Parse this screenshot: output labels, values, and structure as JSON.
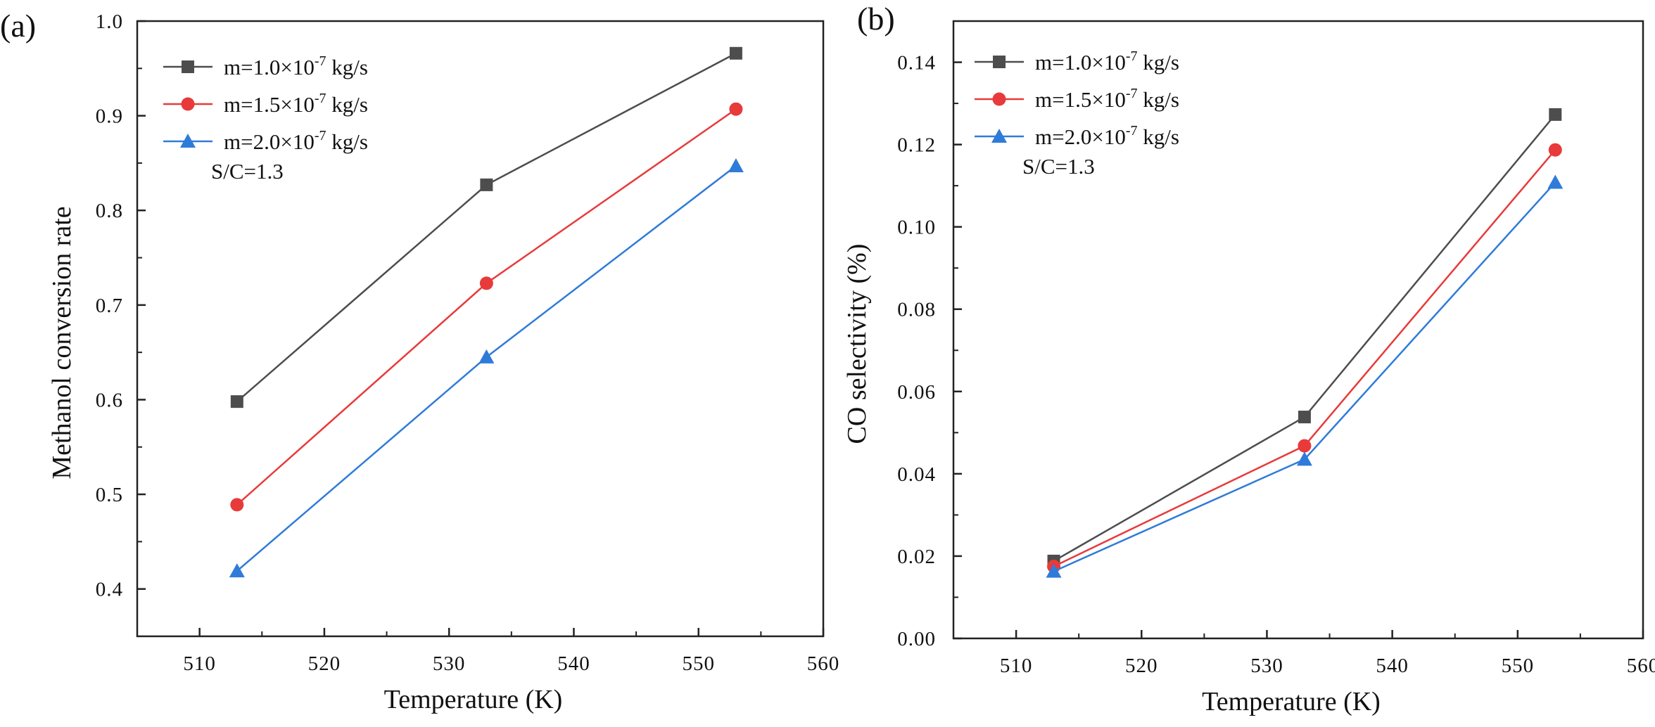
{
  "figure": {
    "background": "#ffffff",
    "axis_color": "#222222"
  },
  "chart_data": [
    {
      "type": "line",
      "panel_label": "(a)",
      "xlabel": "Temperature (K)",
      "ylabel": "Methanol conversion rate",
      "xlim": [
        505,
        560
      ],
      "ylim": [
        0.35,
        1.0
      ],
      "xticks": [
        510,
        520,
        530,
        540,
        550,
        560
      ],
      "xtick_labels": [
        "510",
        "520",
        "530",
        "540",
        "550",
        "560"
      ],
      "yticks": [
        0.4,
        0.5,
        0.6,
        0.7,
        0.8,
        0.9,
        1.0
      ],
      "ytick_labels": [
        "0.4",
        "0.5",
        "0.6",
        "0.7",
        "0.8",
        "0.9",
        "1.0"
      ],
      "grid": false,
      "legend_position": "top-left",
      "annotation": "S/C=1.3",
      "x": [
        513,
        533,
        553
      ],
      "series": [
        {
          "name": "m=1.0×10-7 kg/s",
          "name_base": "m=1.0×10",
          "name_exp": "-7",
          "name_unit": " kg/s",
          "color": "#4d4d4d",
          "marker": "square",
          "values": [
            0.598,
            0.827,
            0.966
          ]
        },
        {
          "name": "m=1.5×10-7 kg/s",
          "name_base": "m=1.5×10",
          "name_exp": "-7",
          "name_unit": " kg/s",
          "color": "#e83a3a",
          "marker": "circle",
          "values": [
            0.489,
            0.723,
            0.907
          ]
        },
        {
          "name": "m=2.0×10-7 kg/s",
          "name_base": "m=2.0×10",
          "name_exp": "-7",
          "name_unit": " kg/s",
          "color": "#2f7bd9",
          "marker": "triangle",
          "values": [
            0.419,
            0.645,
            0.847
          ]
        }
      ]
    },
    {
      "type": "line",
      "panel_label": "(b)",
      "xlabel": "Temperature (K)",
      "ylabel": "CO selectivity (%)",
      "xlim": [
        505,
        560
      ],
      "ylim": [
        0.0,
        0.15
      ],
      "xticks": [
        510,
        520,
        530,
        540,
        550,
        560
      ],
      "xtick_labels": [
        "510",
        "520",
        "530",
        "540",
        "550",
        "560"
      ],
      "yticks": [
        0.0,
        0.02,
        0.04,
        0.06,
        0.08,
        0.1,
        0.12,
        0.14
      ],
      "ytick_labels": [
        "0.00",
        "0.02",
        "0.04",
        "0.06",
        "0.08",
        "0.10",
        "0.12",
        "0.14"
      ],
      "grid": false,
      "legend_position": "top-left",
      "annotation": "S/C=1.3",
      "x": [
        513,
        533,
        553
      ],
      "series": [
        {
          "name": "m=1.0×10-7 kg/s",
          "name_base": "m=1.0×10",
          "name_exp": "-7",
          "name_unit": " kg/s",
          "color": "#4d4d4d",
          "marker": "square",
          "values": [
            0.0188,
            0.0538,
            0.1273
          ]
        },
        {
          "name": "m=1.5×10-7 kg/s",
          "name_base": "m=1.5×10",
          "name_exp": "-7",
          "name_unit": " kg/s",
          "color": "#e83a3a",
          "marker": "circle",
          "values": [
            0.0175,
            0.0468,
            0.1187
          ]
        },
        {
          "name": "m=2.0×10-7 kg/s",
          "name_base": "m=2.0×10",
          "name_exp": "-7",
          "name_unit": " kg/s",
          "color": "#2f7bd9",
          "marker": "triangle",
          "values": [
            0.0163,
            0.0435,
            0.1108
          ]
        }
      ]
    }
  ]
}
